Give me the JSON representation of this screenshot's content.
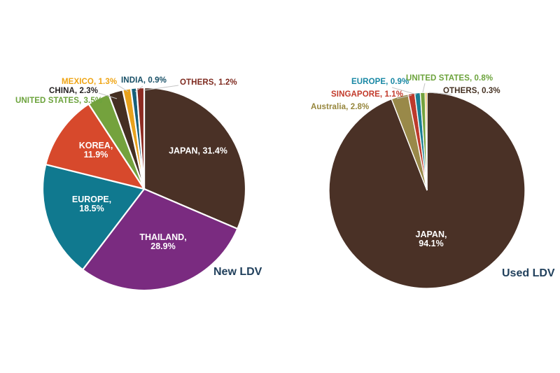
{
  "figure": {
    "background": "#FFFFFF",
    "leader_line_color": "#C4C4C4",
    "title_color": "#21405C"
  },
  "chart_data": [
    {
      "type": "pie",
      "title": "New LDV",
      "units": "%",
      "legend_position": "none",
      "start_angle": "12-oclock-clockwise",
      "slices": [
        {
          "label": "JAPAN",
          "value": 31.4,
          "display": "JAPAN, 31.4%",
          "color": "#4A3126",
          "label_color": "#FFFFFF"
        },
        {
          "label": "THAILAND",
          "value": 28.9,
          "display": "THAILAND,\n28.9%",
          "color": "#7A2B80",
          "label_color": "#FFFFFF"
        },
        {
          "label": "EUROPE",
          "value": 18.5,
          "display": "EUROPE,\n18.5%",
          "color": "#10798F",
          "label_color": "#FFFFFF"
        },
        {
          "label": "KOREA",
          "value": 11.9,
          "display": "KOREA,\n11.9%",
          "color": "#D7492C",
          "label_color": "#FFFFFF"
        },
        {
          "label": "UNITED STATES",
          "value": 3.5,
          "display": "UNITED STATES, 3.5%",
          "color": "#74A23D",
          "label_color": "#6CA33C"
        },
        {
          "label": "CHINA",
          "value": 2.3,
          "display": "CHINA, 2.3%",
          "color": "#452F22",
          "label_color": "#221E1F"
        },
        {
          "label": "MEXICO",
          "value": 1.3,
          "display": "MEXICO, 1.3%",
          "color": "#E9A21D",
          "label_color": "#EFA413"
        },
        {
          "label": "INDIA",
          "value": 0.9,
          "display": "INDIA, 0.9%",
          "color": "#175F79",
          "label_color": "#174F66"
        },
        {
          "label": "OTHERS",
          "value": 1.2,
          "display": "OTHERS, 1.2%",
          "color": "#8C2B22",
          "label_color": "#7E2A1F"
        }
      ]
    },
    {
      "type": "pie",
      "title": "Used LDV",
      "units": "%",
      "legend_position": "none",
      "start_angle": "12-oclock-clockwise",
      "slices": [
        {
          "label": "JAPAN",
          "value": 94.1,
          "display": "JAPAN,\n94.1%",
          "color": "#4A3126",
          "label_color": "#FFFFFF"
        },
        {
          "label": "Australia",
          "value": 2.8,
          "display": "Australia, 2.8%",
          "color": "#998949",
          "label_color": "#96863C"
        },
        {
          "label": "SINGAPORE",
          "value": 1.1,
          "display": "SINGAPORE, 1.1%",
          "color": "#BD3A2B",
          "label_color": "#C23A2B"
        },
        {
          "label": "EUROPE",
          "value": 0.9,
          "display": "EUROPE, 0.9%",
          "color": "#1A7E93",
          "label_color": "#1787A4"
        },
        {
          "label": "UNITED STATES",
          "value": 0.8,
          "display": "UNITED STATES, 0.8%",
          "color": "#74A23D",
          "label_color": "#6CA33C"
        },
        {
          "label": "OTHERS",
          "value": 0.3,
          "display": "OTHERS, 0.3%",
          "color": "#E9A21D",
          "label_color": "#453122"
        }
      ]
    }
  ]
}
